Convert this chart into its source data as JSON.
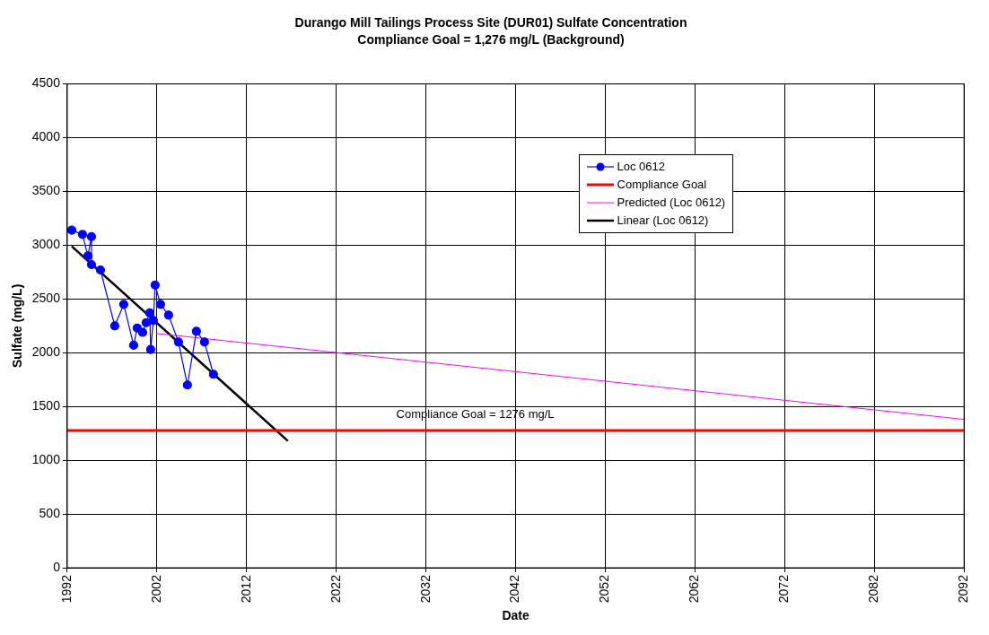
{
  "chart_data": {
    "type": "line",
    "title": "Durango Mill Tailings Process Site (DUR01) Sulfate Concentration",
    "subtitle": "Compliance Goal = 1,276 mg/L (Background)",
    "xlabel": "Date",
    "ylabel": "Sulfate (mg/L)",
    "xlim": [
      1992,
      2092
    ],
    "xticks": [
      1992,
      2002,
      2012,
      2022,
      2032,
      2042,
      2052,
      2062,
      2072,
      2082,
      2092
    ],
    "ylim": [
      0,
      4500
    ],
    "yticks": [
      0,
      500,
      1000,
      1500,
      2000,
      2500,
      3000,
      3500,
      4000,
      4500
    ],
    "grid": true,
    "legend": "top right",
    "series": [
      {
        "name": "Loc 0612",
        "color": "#0000ff",
        "marker": "circle",
        "x": [
          1992.5,
          1993.7,
          1994.3,
          1994.7,
          1994.7,
          1995.7,
          1997.3,
          1998.3,
          1999.4,
          1999.8,
          2000.4,
          2000.8,
          2001.2,
          2001.3,
          2001.6,
          2001.8,
          2002.4,
          2003.3,
          2004.4,
          2005.4,
          2006.4,
          2007.3,
          2008.3
        ],
        "values": [
          3140,
          3100,
          2900,
          3080,
          2820,
          2770,
          2250,
          2450,
          2070,
          2230,
          2190,
          2280,
          2370,
          2030,
          2300,
          2630,
          2450,
          2350,
          2100,
          1700,
          2200,
          2100,
          1800
        ]
      },
      {
        "name": "Compliance Goal",
        "color": "#ff0000",
        "marker": "none",
        "x": [
          1992,
          2092
        ],
        "values": [
          1276,
          1276
        ]
      },
      {
        "name": "Predicted (Loc 0612)",
        "color": "#ff00ff",
        "marker": "none",
        "x": [
          2001.9,
          2092
        ],
        "values": [
          2180,
          1380
        ]
      },
      {
        "name": "Linear (Loc 0612)",
        "color": "#000000",
        "marker": "none",
        "x": [
          1992.5,
          2016.6
        ],
        "values": [
          2990,
          1180
        ]
      }
    ],
    "annotations": [
      "Compliance Goal = 1276 mg/L"
    ]
  }
}
